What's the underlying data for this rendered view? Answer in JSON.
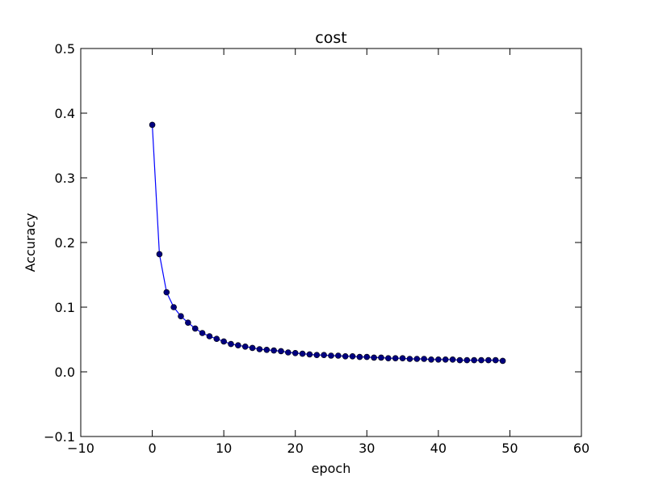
{
  "chart_data": {
    "type": "line",
    "title": "cost",
    "xlabel": "epoch",
    "ylabel": "Accuracy",
    "xlim": [
      -10,
      60
    ],
    "ylim": [
      -0.1,
      0.5
    ],
    "xticks": [
      -10,
      0,
      10,
      20,
      30,
      40,
      50,
      60
    ],
    "yticks": [
      -0.1,
      0.0,
      0.1,
      0.2,
      0.3,
      0.4,
      0.5
    ],
    "xtick_labels": [
      "−10",
      "0",
      "10",
      "20",
      "30",
      "40",
      "50",
      "60"
    ],
    "ytick_labels": [
      "−0.1",
      "0.0",
      "0.1",
      "0.2",
      "0.3",
      "0.4",
      "0.5"
    ],
    "grid": false,
    "series": [
      {
        "color": "#0000ff",
        "marker": "circle",
        "marker_color": "#000080",
        "x": [
          0,
          1,
          2,
          3,
          4,
          5,
          6,
          7,
          8,
          9,
          10,
          11,
          12,
          13,
          14,
          15,
          16,
          17,
          18,
          19,
          20,
          21,
          22,
          23,
          24,
          25,
          26,
          27,
          28,
          29,
          30,
          31,
          32,
          33,
          34,
          35,
          36,
          37,
          38,
          39,
          40,
          41,
          42,
          43,
          44,
          45,
          46,
          47,
          48,
          49
        ],
        "y": [
          0.382,
          0.182,
          0.123,
          0.1,
          0.086,
          0.076,
          0.067,
          0.06,
          0.055,
          0.051,
          0.047,
          0.043,
          0.041,
          0.039,
          0.037,
          0.035,
          0.034,
          0.033,
          0.032,
          0.03,
          0.029,
          0.028,
          0.027,
          0.026,
          0.026,
          0.025,
          0.025,
          0.024,
          0.024,
          0.023,
          0.023,
          0.022,
          0.022,
          0.021,
          0.021,
          0.021,
          0.02,
          0.02,
          0.02,
          0.019,
          0.019,
          0.019,
          0.019,
          0.018,
          0.018,
          0.018,
          0.018,
          0.018,
          0.018,
          0.017
        ]
      }
    ]
  }
}
